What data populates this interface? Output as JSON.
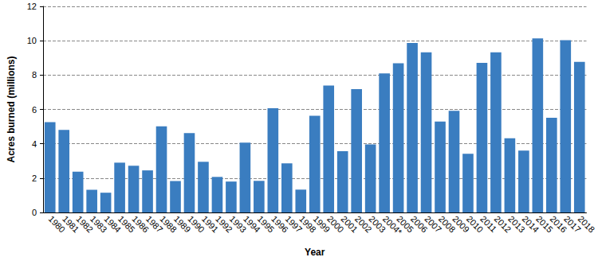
{
  "chart_data": {
    "type": "bar",
    "x_label": "Year",
    "y_label": "Acres burned (millions)",
    "categories": [
      "1980",
      "1981",
      "1982",
      "1983",
      "1984",
      "1985",
      "1986",
      "1987",
      "1988",
      "1989",
      "1990",
      "1991",
      "1992",
      "1993",
      "1994",
      "1995",
      "1996",
      "1997",
      "1998",
      "1999",
      "2000",
      "2001",
      "2002",
      "2003",
      "2004*",
      "2005",
      "2006",
      "2007",
      "2008",
      "2009",
      "2010",
      "2011",
      "2012",
      "2013",
      "2014",
      "2015",
      "2016",
      "2017",
      "2018"
    ],
    "values": [
      5.26,
      4.81,
      2.38,
      1.32,
      1.15,
      2.9,
      2.72,
      2.45,
      5.01,
      1.83,
      4.62,
      2.95,
      2.07,
      1.8,
      4.07,
      1.84,
      6.07,
      2.86,
      1.33,
      5.63,
      7.39,
      3.57,
      7.18,
      3.96,
      8.1,
      8.69,
      9.87,
      9.33,
      5.29,
      5.92,
      3.42,
      8.71,
      9.33,
      4.32,
      3.6,
      10.13,
      5.51,
      10.03,
      8.77
    ],
    "color": "#3a7dc0",
    "ylim": [
      0,
      12
    ],
    "yticks": [
      0,
      2,
      4,
      6,
      8,
      10,
      12
    ],
    "grid": true
  }
}
